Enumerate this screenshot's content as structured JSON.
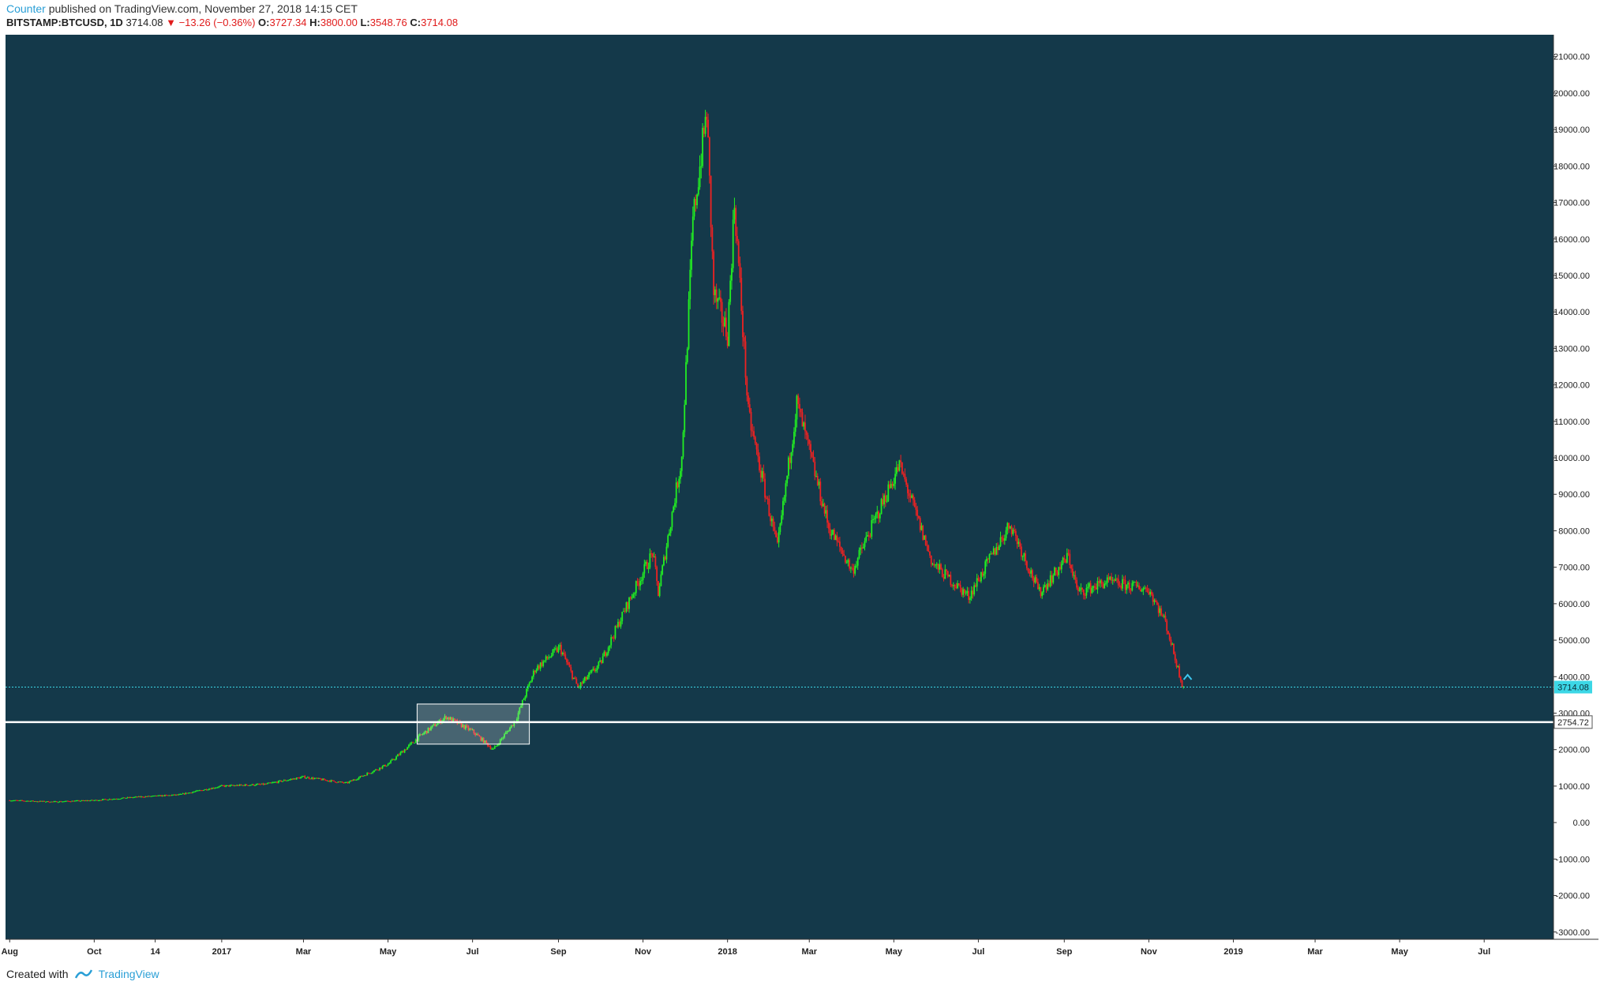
{
  "header": {
    "author": "Counter",
    "published_text": "published on TradingView.com, November 27, 2018 14:15 CET",
    "symbol": "BITSTAMP:BTCUSD, 1D",
    "last": "3714.08",
    "change": "−13.26 (−0.36%)",
    "open_label": "O:",
    "open": "3727.34",
    "high_label": "H:",
    "high": "3800.00",
    "low_label": "L:",
    "low": "3548.76",
    "close_label": "C:",
    "close": "3714.08"
  },
  "footer": {
    "created_with": "Created with",
    "brand": "TradingView"
  },
  "colors": {
    "background": "#14394a",
    "up": "#22ee22",
    "down": "#ee2222",
    "price_line": "#3cd7e6",
    "level_line": "#ffffff",
    "box": "#ffffff"
  },
  "chart_data": {
    "type": "candlestick",
    "symbol": "BITSTAMP:BTCUSD",
    "interval": "1D",
    "x": [
      "2016-08-01",
      "2016-09-01",
      "2016-10-01",
      "2016-11-01",
      "2016-12-01",
      "2017-01-01",
      "2017-02-01",
      "2017-03-01",
      "2017-04-01",
      "2017-05-01",
      "2017-05-25",
      "2017-06-12",
      "2017-07-01",
      "2017-07-16",
      "2017-08-01",
      "2017-08-15",
      "2017-09-02",
      "2017-09-15",
      "2017-10-01",
      "2017-10-21",
      "2017-11-08",
      "2017-11-12",
      "2017-11-29",
      "2017-12-07",
      "2017-12-17",
      "2017-12-22",
      "2018-01-01",
      "2018-01-06",
      "2018-01-16",
      "2018-02-06",
      "2018-02-20",
      "2018-03-15",
      "2018-04-01",
      "2018-05-05",
      "2018-05-29",
      "2018-06-24",
      "2018-07-24",
      "2018-08-14",
      "2018-09-04",
      "2018-09-11",
      "2018-10-01",
      "2018-11-01",
      "2018-11-13",
      "2018-11-20",
      "2018-11-25",
      "2018-11-27"
    ],
    "close": [
      610,
      570,
      610,
      700,
      760,
      1000,
      1050,
      1250,
      1080,
      1600,
      2400,
      2900,
      2500,
      2000,
      2800,
      4200,
      4800,
      3700,
      4350,
      6000,
      7400,
      6300,
      10000,
      16500,
      19500,
      14500,
      13400,
      17000,
      11200,
      7500,
      11500,
      8100,
      6900,
      9800,
      7100,
      6200,
      8200,
      6300,
      7300,
      6300,
      6600,
      6400,
      5500,
      4500,
      3800,
      3714
    ],
    "series_colors": {
      "up": "#22ee22",
      "down": "#ee2222"
    },
    "y_ticks": [
      -3000,
      -2000,
      -1000,
      0,
      1000,
      2000,
      3000,
      4000,
      5000,
      6000,
      7000,
      8000,
      9000,
      10000,
      11000,
      12000,
      13000,
      14000,
      15000,
      16000,
      17000,
      18000,
      19000,
      20000,
      21000
    ],
    "y_tick_labels": [
      "-3000.00",
      "-2000.00",
      "-1000.00",
      "0.00",
      "1000.00",
      "2000.00",
      "3000.00",
      "4000.00",
      "5000.00",
      "6000.00",
      "7000.00",
      "8000.00",
      "9000.00",
      "10000.00",
      "11000.00",
      "12000.00",
      "13000.00",
      "14000.00",
      "15000.00",
      "16000.00",
      "17000.00",
      "18000.00",
      "19000.00",
      "20000.00",
      "21000.00"
    ],
    "ylim": [
      -3200,
      21600
    ],
    "x_ticks": [
      {
        "date": "2016-08-01",
        "label": "Aug"
      },
      {
        "date": "2016-10-01",
        "label": "Oct"
      },
      {
        "date": "2016-11-14",
        "label": "14"
      },
      {
        "date": "2017-01-01",
        "label": "2017"
      },
      {
        "date": "2017-03-01",
        "label": "Mar"
      },
      {
        "date": "2017-05-01",
        "label": "May"
      },
      {
        "date": "2017-07-01",
        "label": "Jul"
      },
      {
        "date": "2017-09-01",
        "label": "Sep"
      },
      {
        "date": "2017-11-01",
        "label": "Nov"
      },
      {
        "date": "2018-01-01",
        "label": "2018"
      },
      {
        "date": "2018-03-01",
        "label": "Mar"
      },
      {
        "date": "2018-05-01",
        "label": "May"
      },
      {
        "date": "2018-07-01",
        "label": "Jul"
      },
      {
        "date": "2018-09-01",
        "label": "Sep"
      },
      {
        "date": "2018-11-01",
        "label": "Nov"
      },
      {
        "date": "2019-01-01",
        "label": "2019"
      },
      {
        "date": "2019-03-01",
        "label": "Mar"
      },
      {
        "date": "2019-05-01",
        "label": "May"
      },
      {
        "date": "2019-07-01",
        "label": "Jul"
      }
    ],
    "xlim": [
      "2016-07-29",
      "2019-08-20"
    ],
    "price_line": {
      "value": 3714.08,
      "label": "3714.08"
    },
    "horizontal_level": {
      "value": 2754.72,
      "label": "2754.72"
    },
    "range_box": {
      "x_start": "2017-05-22",
      "x_end": "2017-08-11",
      "y_low": 2150,
      "y_high": 3250
    },
    "grid": false,
    "legend": "none"
  }
}
